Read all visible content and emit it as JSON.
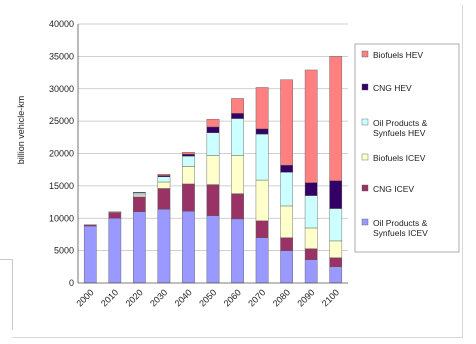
{
  "chart_data": {
    "type": "bar",
    "stacked": true,
    "title": "",
    "xlabel": "",
    "ylabel": "billion vehicle-km",
    "ylim": [
      0,
      40000
    ],
    "yticks": [
      0,
      5000,
      10000,
      15000,
      20000,
      25000,
      30000,
      35000,
      40000
    ],
    "grid": true,
    "legend_position": "right",
    "categories": [
      "2000",
      "2010",
      "2020",
      "2030",
      "2040",
      "2050",
      "2060",
      "2070",
      "2080",
      "2090",
      "2100"
    ],
    "series": [
      {
        "name": "Oil Products & Synfuels ICEV",
        "color": "#9999ff",
        "values": [
          8800,
          10000,
          11000,
          11400,
          11100,
          10400,
          9900,
          7000,
          5000,
          3600,
          2500
        ]
      },
      {
        "name": "CNG ICEV",
        "color": "#993366",
        "values": [
          200,
          900,
          2300,
          3200,
          4200,
          4800,
          3900,
          2600,
          2000,
          1700,
          1400
        ]
      },
      {
        "name": "Biofuels ICEV",
        "color": "#ffffcc",
        "values": [
          0,
          100,
          300,
          1000,
          2700,
          4500,
          5900,
          6300,
          4900,
          3200,
          2600
        ]
      },
      {
        "name": "Oil Products & Synfuels HEV",
        "color": "#ccffff",
        "values": [
          0,
          0,
          300,
          800,
          1600,
          3500,
          5700,
          7100,
          5200,
          5000,
          5000
        ]
      },
      {
        "name": "CNG HEV",
        "color": "#330066",
        "values": [
          0,
          0,
          100,
          200,
          300,
          900,
          800,
          800,
          1100,
          2000,
          4300
        ]
      },
      {
        "name": "Biofuels HEV",
        "color": "#ff8080",
        "values": [
          0,
          0,
          0,
          200,
          300,
          1200,
          2300,
          6400,
          13200,
          17400,
          19200
        ]
      }
    ]
  }
}
